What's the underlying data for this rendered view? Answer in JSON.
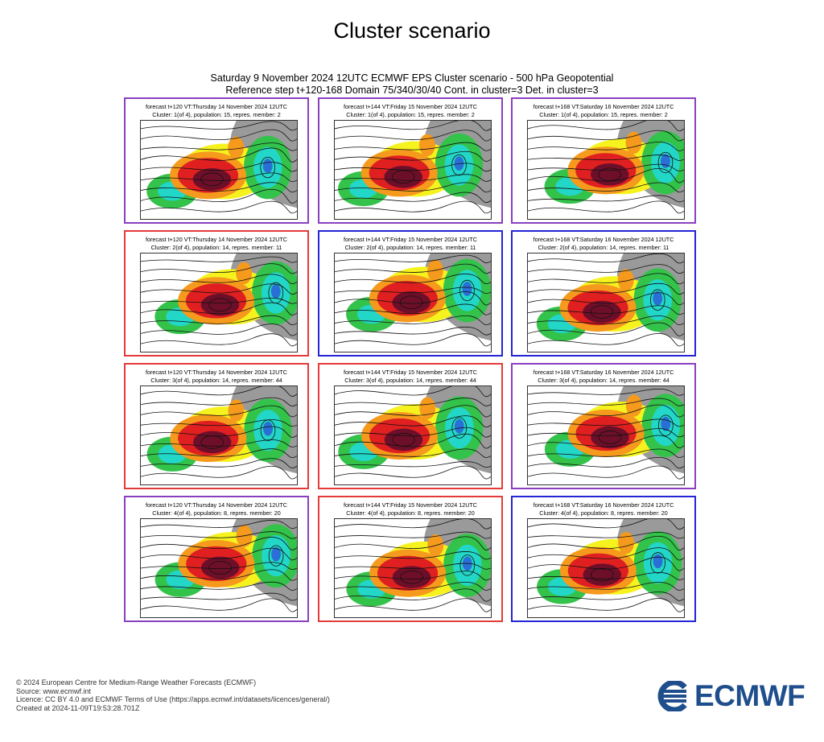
{
  "page": {
    "title": "Cluster scenario"
  },
  "header": {
    "line1": "Saturday 9 November 2024 12UTC ECMWF EPS Cluster scenario - 500 hPa Geopotential",
    "line2": "Reference step t+120-168 Domain 75/340/30/40 Cont. in cluster=3 Det. in cluster=3"
  },
  "colors": {
    "purple": "#8a3fc0",
    "red": "#e53a3a",
    "blue": "#2424d8",
    "brand": "#1f4e8c"
  },
  "panels": [
    {
      "line1": "forecast t+120 VT:Thursday 14 November 2024 12UTC",
      "line2": "Cluster: 1(of 4), population: 15, repres. member: 2",
      "border": "purple"
    },
    {
      "line1": "forecast t+144 VT:Friday 15 November 2024 12UTC",
      "line2": "Cluster: 1(of 4), population: 15, repres. member: 2",
      "border": "purple"
    },
    {
      "line1": "forecast t+168 VT:Saturday 16 November 2024 12UTC",
      "line2": "Cluster: 1(of 4), population: 15, repres. member: 2",
      "border": "purple"
    },
    {
      "line1": "forecast t+120 VT:Thursday 14 November 2024 12UTC",
      "line2": "Cluster: 2(of 4), population: 14, repres. member: 11",
      "border": "red"
    },
    {
      "line1": "forecast t+144 VT:Friday 15 November 2024 12UTC",
      "line2": "Cluster: 2(of 4), population: 14, repres. member: 11",
      "border": "blue"
    },
    {
      "line1": "forecast t+168 VT:Saturday 16 November 2024 12UTC",
      "line2": "Cluster: 2(of 4), population: 14, repres. member: 11",
      "border": "blue"
    },
    {
      "line1": "forecast t+120 VT:Thursday 14 November 2024 12UTC",
      "line2": "Cluster: 3(of 4), population: 14, repres. member: 44",
      "border": "red"
    },
    {
      "line1": "forecast t+144 VT:Friday 15 November 2024 12UTC",
      "line2": "Cluster: 3(of 4), population: 14, repres. member: 44",
      "border": "red"
    },
    {
      "line1": "forecast t+168 VT:Saturday 16 November 2024 12UTC",
      "line2": "Cluster: 3(of 4), population: 14, repres. member: 44",
      "border": "purple"
    },
    {
      "line1": "forecast t+120 VT:Thursday 14 November 2024 12UTC",
      "line2": "Cluster: 4(of 4), population: 8, repres. member: 20",
      "border": "purple"
    },
    {
      "line1": "forecast t+144 VT:Friday 15 November 2024 12UTC",
      "line2": "Cluster: 4(of 4), population: 8, repres. member: 20",
      "border": "red"
    },
    {
      "line1": "forecast t+168 VT:Saturday 16 November 2024 12UTC",
      "line2": "Cluster: 4(of 4), population: 8, repres. member: 20",
      "border": "blue"
    }
  ],
  "footer": {
    "copyright": "© 2024 European Centre for Medium-Range Weather Forecasts (ECMWF)",
    "source": "Source: www.ecmwf.int",
    "licence": "Licence: CC BY 4.0 and ECMWF Terms of Use (https://apps.ecmwf.int/datasets/licences/general/)",
    "created": "Created at 2024-11-09T19:53:28.701Z"
  },
  "logo": {
    "text": "ECMWF"
  }
}
